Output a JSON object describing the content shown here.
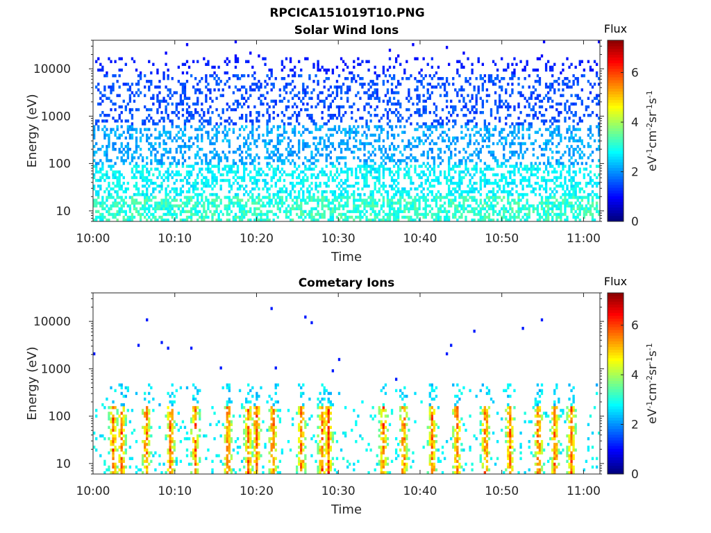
{
  "figure_title": "RPCICA151019T10.PNG",
  "colors": {
    "axis": "#262626",
    "background": "#ffffff"
  },
  "chart_data": [
    {
      "type": "heatmap",
      "title": "Solar Wind Ions",
      "xlabel": "Time",
      "ylabel": "Energy (eV)",
      "y_scale": "log",
      "ylim": [
        6,
        40000
      ],
      "xlim": [
        "10:00",
        "11:02"
      ],
      "xticks": [
        "10:00",
        "10:10",
        "10:20",
        "10:30",
        "10:40",
        "10:50",
        "11:00"
      ],
      "yticks": [
        10,
        100,
        1000,
        10000
      ],
      "ytick_labels": [
        "10",
        "100",
        "1000",
        "10000"
      ],
      "colorbar": {
        "title": "Flux",
        "label": "eV-1cm-2sr-1s-1",
        "range": [
          0,
          7.3
        ],
        "ticks": [
          0,
          2,
          4,
          6
        ],
        "tick_labels": [
          "0",
          "2",
          "4",
          "6"
        ],
        "colormap": "jet"
      },
      "profile": "solar_wind"
    },
    {
      "type": "heatmap",
      "title": "Cometary Ions",
      "xlabel": "Time",
      "ylabel": "Energy (eV)",
      "y_scale": "log",
      "ylim": [
        6,
        40000
      ],
      "xlim": [
        "10:00",
        "11:02"
      ],
      "xticks": [
        "10:00",
        "10:10",
        "10:20",
        "10:30",
        "10:40",
        "10:50",
        "11:00"
      ],
      "yticks": [
        10,
        100,
        1000,
        10000
      ],
      "ytick_labels": [
        "10",
        "100",
        "1000",
        "10000"
      ],
      "colorbar": {
        "title": "Flux",
        "label": "eV-1cm-2sr-1s-1",
        "range": [
          0,
          7.3
        ],
        "ticks": [
          0,
          2,
          4,
          6
        ],
        "tick_labels": [
          "0",
          "2",
          "4",
          "6"
        ],
        "colormap": "jet"
      },
      "profile": "cometary",
      "bursts_minutes": [
        2.5,
        3.5,
        6.5,
        9.5,
        12.5,
        16.5,
        19,
        20,
        22,
        25.5,
        28,
        28.8,
        35.5,
        38,
        41.5,
        44.5,
        48,
        51,
        54.5,
        56.5,
        58.5
      ]
    }
  ]
}
